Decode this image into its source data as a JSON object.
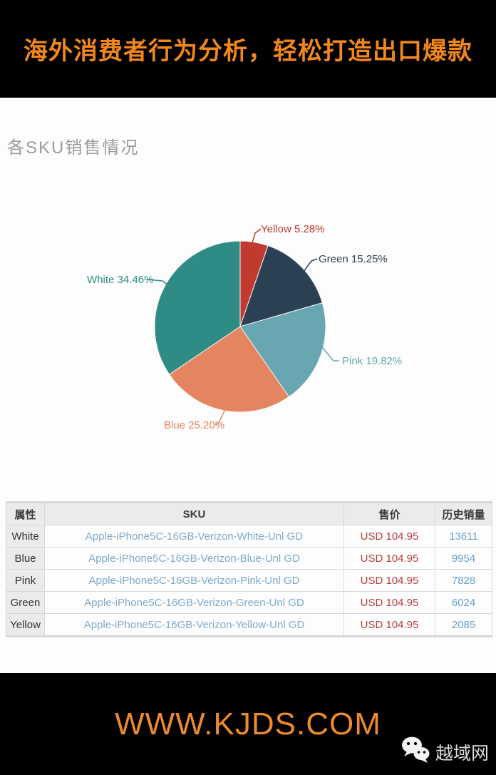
{
  "header": {
    "title": "海外消费者行为分析，轻松打造出口爆款"
  },
  "section": {
    "title": "各SKU销售情况"
  },
  "chart_data": {
    "type": "pie",
    "title": "各SKU销售情况",
    "start_angle_deg": 0,
    "direction": "clockwise",
    "legend_position": "none",
    "slices": [
      {
        "name": "Yellow",
        "value": 5.28,
        "label": "Yellow 5.28%",
        "color": "#c23930"
      },
      {
        "name": "Green",
        "value": 15.25,
        "label": "Green 15.25%",
        "color": "#2c4054"
      },
      {
        "name": "Pink",
        "value": 19.82,
        "label": "Pink 19.82%",
        "color": "#68a6b2"
      },
      {
        "name": "Blue",
        "value": 25.2,
        "label": "Blue 25.20%",
        "color": "#e5855f"
      },
      {
        "name": "White",
        "value": 34.46,
        "label": "White 34.46%",
        "color": "#2f8c85"
      }
    ]
  },
  "table": {
    "columns": [
      "属性",
      "SKU",
      "售价",
      "历史销量"
    ],
    "rows": [
      {
        "attr": "White",
        "sku": "Apple-iPhone5C-16GB-Verizon-White-Unl GD",
        "price": "USD 104.95",
        "sales": "13611"
      },
      {
        "attr": "Blue",
        "sku": "Apple-iPhone5C-16GB-Verizon-Blue-Unl GD",
        "price": "USD 104.95",
        "sales": "9954"
      },
      {
        "attr": "Pink",
        "sku": "Apple-iPhone5C-16GB-Verizon-Pink-Unl GD",
        "price": "USD 104.95",
        "sales": "7828"
      },
      {
        "attr": "Green",
        "sku": "Apple-iPhone5C-16GB-Verizon-Green-Unl GD",
        "price": "USD 104.95",
        "sales": "6024"
      },
      {
        "attr": "Yellow",
        "sku": "Apple-iPhone5C-16GB-Verizon-Yellow-Unl GD",
        "price": "USD 104.95",
        "sales": "2085"
      }
    ]
  },
  "footer": {
    "site": "WWW.KJDS.COM",
    "wechat_name": "越域网"
  }
}
